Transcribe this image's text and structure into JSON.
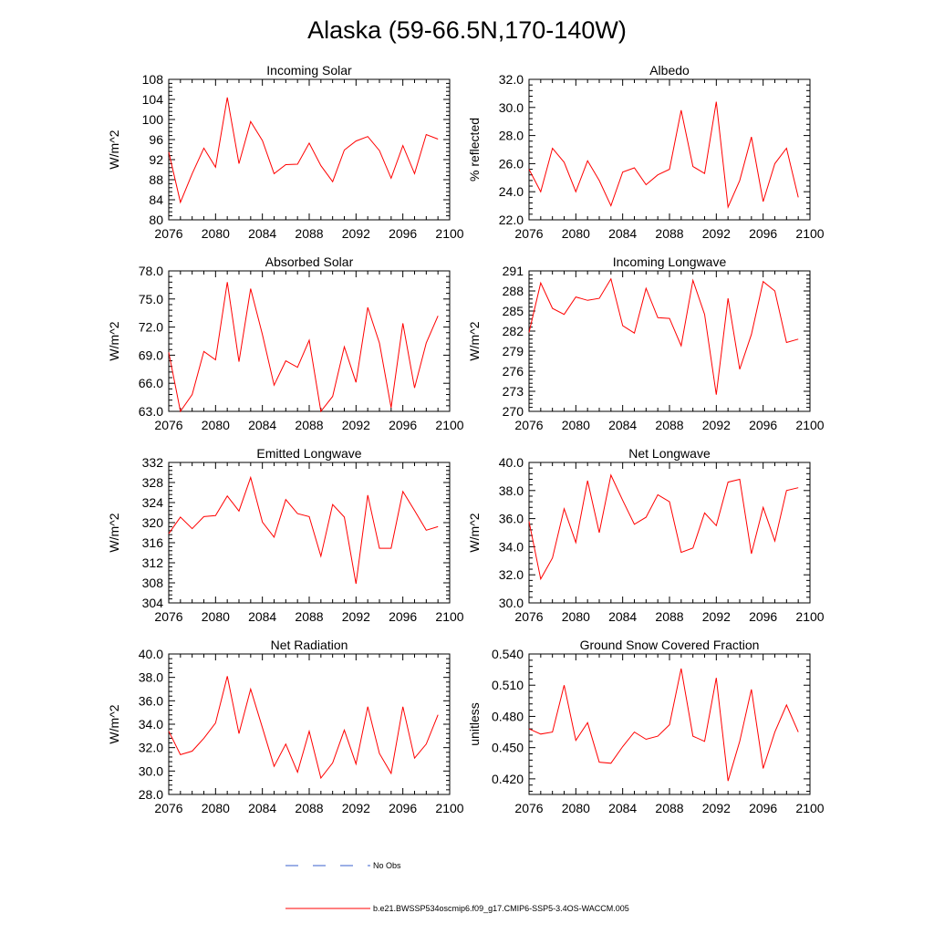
{
  "title": "Alaska (59-66.5N,170-140W)",
  "legend": {
    "obs_label": "No Obs",
    "model_label": "b.e21.BWSSP534oscmip6.f09_g17.CMIP6-SSP5-3.4OS-WACCM.005",
    "obs_color": "#3a5fcd",
    "model_color": "#ff0000"
  },
  "chart_data": [
    {
      "type": "line",
      "title": "Incoming Solar",
      "ylabel": "W/m^2",
      "xlabel": "",
      "x_ticks": [
        2076,
        2080,
        2084,
        2088,
        2092,
        2096,
        2100
      ],
      "xlim": [
        2076,
        2100
      ],
      "ylim": [
        80,
        108
      ],
      "y_ticks": [
        "80",
        "84",
        "88",
        "92",
        "96",
        "100",
        "104",
        "108"
      ],
      "series": [
        {
          "name": "b.e21.BWSSP534oscmip6.f09_g17.CMIP6-SSP5-3.4OS-WACCM.005",
          "x": [
            2076,
            2077,
            2078,
            2079,
            2080,
            2081,
            2082,
            2083,
            2084,
            2085,
            2086,
            2087,
            2088,
            2089,
            2090,
            2091,
            2092,
            2093,
            2094,
            2095,
            2096,
            2097,
            2098,
            2099
          ],
          "values": [
            93.5,
            83.5,
            89.2,
            94.3,
            90.5,
            104.4,
            91.2,
            99.6,
            95.8,
            89.2,
            91.0,
            91.1,
            95.3,
            90.8,
            87.6,
            93.9,
            95.7,
            96.6,
            93.8,
            88.3,
            94.8,
            89.2,
            97.0,
            96.1
          ]
        }
      ]
    },
    {
      "type": "line",
      "title": "Albedo",
      "ylabel": "% reflected",
      "xlabel": "",
      "x_ticks": [
        2076,
        2080,
        2084,
        2088,
        2092,
        2096,
        2100
      ],
      "xlim": [
        2076,
        2100
      ],
      "ylim": [
        22,
        32
      ],
      "y_ticks": [
        "22.0",
        "24.0",
        "26.0",
        "28.0",
        "30.0",
        "32.0"
      ],
      "series": [
        {
          "name": "b.e21.BWSSP534oscmip6.f09_g17.CMIP6-SSP5-3.4OS-WACCM.005",
          "x": [
            2076,
            2077,
            2078,
            2079,
            2080,
            2081,
            2082,
            2083,
            2084,
            2085,
            2086,
            2087,
            2088,
            2089,
            2090,
            2091,
            2092,
            2093,
            2094,
            2095,
            2096,
            2097,
            2098,
            2099
          ],
          "values": [
            25.6,
            24.0,
            27.1,
            26.1,
            24.0,
            26.2,
            24.8,
            23.0,
            25.4,
            25.7,
            24.5,
            25.2,
            25.6,
            29.8,
            25.8,
            25.3,
            30.4,
            22.9,
            24.8,
            27.9,
            23.3,
            26.0,
            27.1,
            23.6
          ]
        }
      ]
    },
    {
      "type": "line",
      "title": "Absorbed Solar",
      "ylabel": "W/m^2",
      "xlabel": "",
      "x_ticks": [
        2076,
        2080,
        2084,
        2088,
        2092,
        2096,
        2100
      ],
      "xlim": [
        2076,
        2100
      ],
      "ylim": [
        63,
        78
      ],
      "y_ticks": [
        "63.0",
        "66.0",
        "69.0",
        "72.0",
        "75.0",
        "78.0"
      ],
      "series": [
        {
          "name": "b.e21.BWSSP534oscmip6.f09_g17.CMIP6-SSP5-3.4OS-WACCM.005",
          "x": [
            2076,
            2077,
            2078,
            2079,
            2080,
            2081,
            2082,
            2083,
            2084,
            2085,
            2086,
            2087,
            2088,
            2089,
            2090,
            2091,
            2092,
            2093,
            2094,
            2095,
            2096,
            2097,
            2098,
            2099
          ],
          "values": [
            69.3,
            63.0,
            64.8,
            69.4,
            68.5,
            76.8,
            68.3,
            76.1,
            71.2,
            65.8,
            68.4,
            67.7,
            70.6,
            63.0,
            64.6,
            69.9,
            66.1,
            74.1,
            70.3,
            63.4,
            72.4,
            65.5,
            70.3,
            73.2
          ]
        }
      ]
    },
    {
      "type": "line",
      "title": "Incoming Longwave",
      "ylabel": "W/m^2",
      "xlabel": "",
      "x_ticks": [
        2076,
        2080,
        2084,
        2088,
        2092,
        2096,
        2100
      ],
      "xlim": [
        2076,
        2100
      ],
      "ylim": [
        270,
        291
      ],
      "y_ticks": [
        "270",
        "273",
        "276",
        "279",
        "282",
        "285",
        "288",
        "291"
      ],
      "series": [
        {
          "name": "b.e21.BWSSP534oscmip6.f09_g17.CMIP6-SSP5-3.4OS-WACCM.005",
          "x": [
            2076,
            2077,
            2078,
            2079,
            2080,
            2081,
            2082,
            2083,
            2084,
            2085,
            2086,
            2087,
            2088,
            2089,
            2090,
            2091,
            2092,
            2093,
            2094,
            2095,
            2096,
            2097,
            2098,
            2099
          ],
          "values": [
            281.8,
            289.2,
            285.4,
            284.5,
            287.1,
            286.6,
            286.9,
            289.8,
            282.8,
            281.7,
            288.4,
            284.0,
            283.9,
            279.8,
            289.6,
            284.5,
            272.5,
            286.9,
            276.3,
            281.5,
            289.4,
            288.0,
            280.3,
            280.8
          ]
        }
      ]
    },
    {
      "type": "line",
      "title": "Emitted Longwave",
      "ylabel": "W/m^2",
      "xlabel": "",
      "x_ticks": [
        2076,
        2080,
        2084,
        2088,
        2092,
        2096,
        2100
      ],
      "xlim": [
        2076,
        2100
      ],
      "ylim": [
        304,
        332
      ],
      "y_ticks": [
        "304",
        "308",
        "312",
        "316",
        "320",
        "324",
        "328",
        "332"
      ],
      "series": [
        {
          "name": "b.e21.BWSSP534oscmip6.f09_g17.CMIP6-SSP5-3.4OS-WACCM.005",
          "x": [
            2076,
            2077,
            2078,
            2079,
            2080,
            2081,
            2082,
            2083,
            2084,
            2085,
            2086,
            2087,
            2088,
            2089,
            2090,
            2091,
            2092,
            2093,
            2094,
            2095,
            2096,
            2097,
            2098,
            2099
          ],
          "values": [
            317.8,
            321.1,
            318.8,
            321.2,
            321.4,
            325.3,
            322.3,
            329.0,
            320.1,
            317.1,
            324.6,
            321.8,
            321.2,
            313.3,
            323.6,
            321.1,
            307.8,
            325.5,
            314.9,
            314.9,
            326.2,
            322.4,
            318.5,
            319.2
          ]
        }
      ]
    },
    {
      "type": "line",
      "title": "Net Longwave",
      "ylabel": "W/m^2",
      "xlabel": "",
      "x_ticks": [
        2076,
        2080,
        2084,
        2088,
        2092,
        2096,
        2100
      ],
      "xlim": [
        2076,
        2100
      ],
      "ylim": [
        30,
        40
      ],
      "y_ticks": [
        "30.0",
        "32.0",
        "34.0",
        "36.0",
        "38.0",
        "40.0"
      ],
      "series": [
        {
          "name": "b.e21.BWSSP534oscmip6.f09_g17.CMIP6-SSP5-3.4OS-WACCM.005",
          "x": [
            2076,
            2077,
            2078,
            2079,
            2080,
            2081,
            2082,
            2083,
            2084,
            2085,
            2086,
            2087,
            2088,
            2089,
            2090,
            2091,
            2092,
            2093,
            2094,
            2095,
            2096,
            2097,
            2098,
            2099
          ],
          "values": [
            35.8,
            31.7,
            33.2,
            36.7,
            34.3,
            38.7,
            35.0,
            39.1,
            37.3,
            35.6,
            36.1,
            37.7,
            37.2,
            33.6,
            33.9,
            36.4,
            35.5,
            38.6,
            38.8,
            33.5,
            36.8,
            34.4,
            38.0,
            38.2
          ]
        }
      ]
    },
    {
      "type": "line",
      "title": "Net Radiation",
      "ylabel": "W/m^2",
      "xlabel": "",
      "x_ticks": [
        2076,
        2080,
        2084,
        2088,
        2092,
        2096,
        2100
      ],
      "xlim": [
        2076,
        2100
      ],
      "ylim": [
        28,
        40
      ],
      "y_ticks": [
        "28.0",
        "30.0",
        "32.0",
        "34.0",
        "36.0",
        "38.0",
        "40.0"
      ],
      "series": [
        {
          "name": "b.e21.BWSSP534oscmip6.f09_g17.CMIP6-SSP5-3.4OS-WACCM.005",
          "x": [
            2076,
            2077,
            2078,
            2079,
            2080,
            2081,
            2082,
            2083,
            2084,
            2085,
            2086,
            2087,
            2088,
            2089,
            2090,
            2091,
            2092,
            2093,
            2094,
            2095,
            2096,
            2097,
            2098,
            2099
          ],
          "values": [
            33.4,
            31.4,
            31.7,
            32.8,
            34.1,
            38.1,
            33.2,
            37.0,
            33.7,
            30.4,
            32.3,
            29.9,
            33.4,
            29.4,
            30.7,
            33.5,
            30.6,
            35.5,
            31.5,
            29.8,
            35.5,
            31.1,
            32.3,
            34.8
          ]
        }
      ]
    },
    {
      "type": "line",
      "title": "Ground Snow Covered Fraction",
      "ylabel": "unitless",
      "xlabel": "",
      "x_ticks": [
        2076,
        2080,
        2084,
        2088,
        2092,
        2096,
        2100
      ],
      "xlim": [
        2076,
        2100
      ],
      "ylim": [
        0.405,
        0.54
      ],
      "y_ticks": [
        "0.420",
        "0.450",
        "0.480",
        "0.510",
        "0.540"
      ],
      "y_tick_values": [
        0.42,
        0.45,
        0.48,
        0.51,
        0.54
      ],
      "series": [
        {
          "name": "b.e21.BWSSP534oscmip6.f09_g17.CMIP6-SSP5-3.4OS-WACCM.005",
          "x": [
            2076,
            2077,
            2078,
            2079,
            2080,
            2081,
            2082,
            2083,
            2084,
            2085,
            2086,
            2087,
            2088,
            2089,
            2090,
            2091,
            2092,
            2093,
            2094,
            2095,
            2096,
            2097,
            2098,
            2099
          ],
          "values": [
            0.468,
            0.463,
            0.465,
            0.51,
            0.457,
            0.474,
            0.436,
            0.435,
            0.451,
            0.465,
            0.458,
            0.461,
            0.472,
            0.526,
            0.461,
            0.456,
            0.517,
            0.418,
            0.456,
            0.506,
            0.43,
            0.465,
            0.491,
            0.465
          ]
        }
      ]
    }
  ]
}
